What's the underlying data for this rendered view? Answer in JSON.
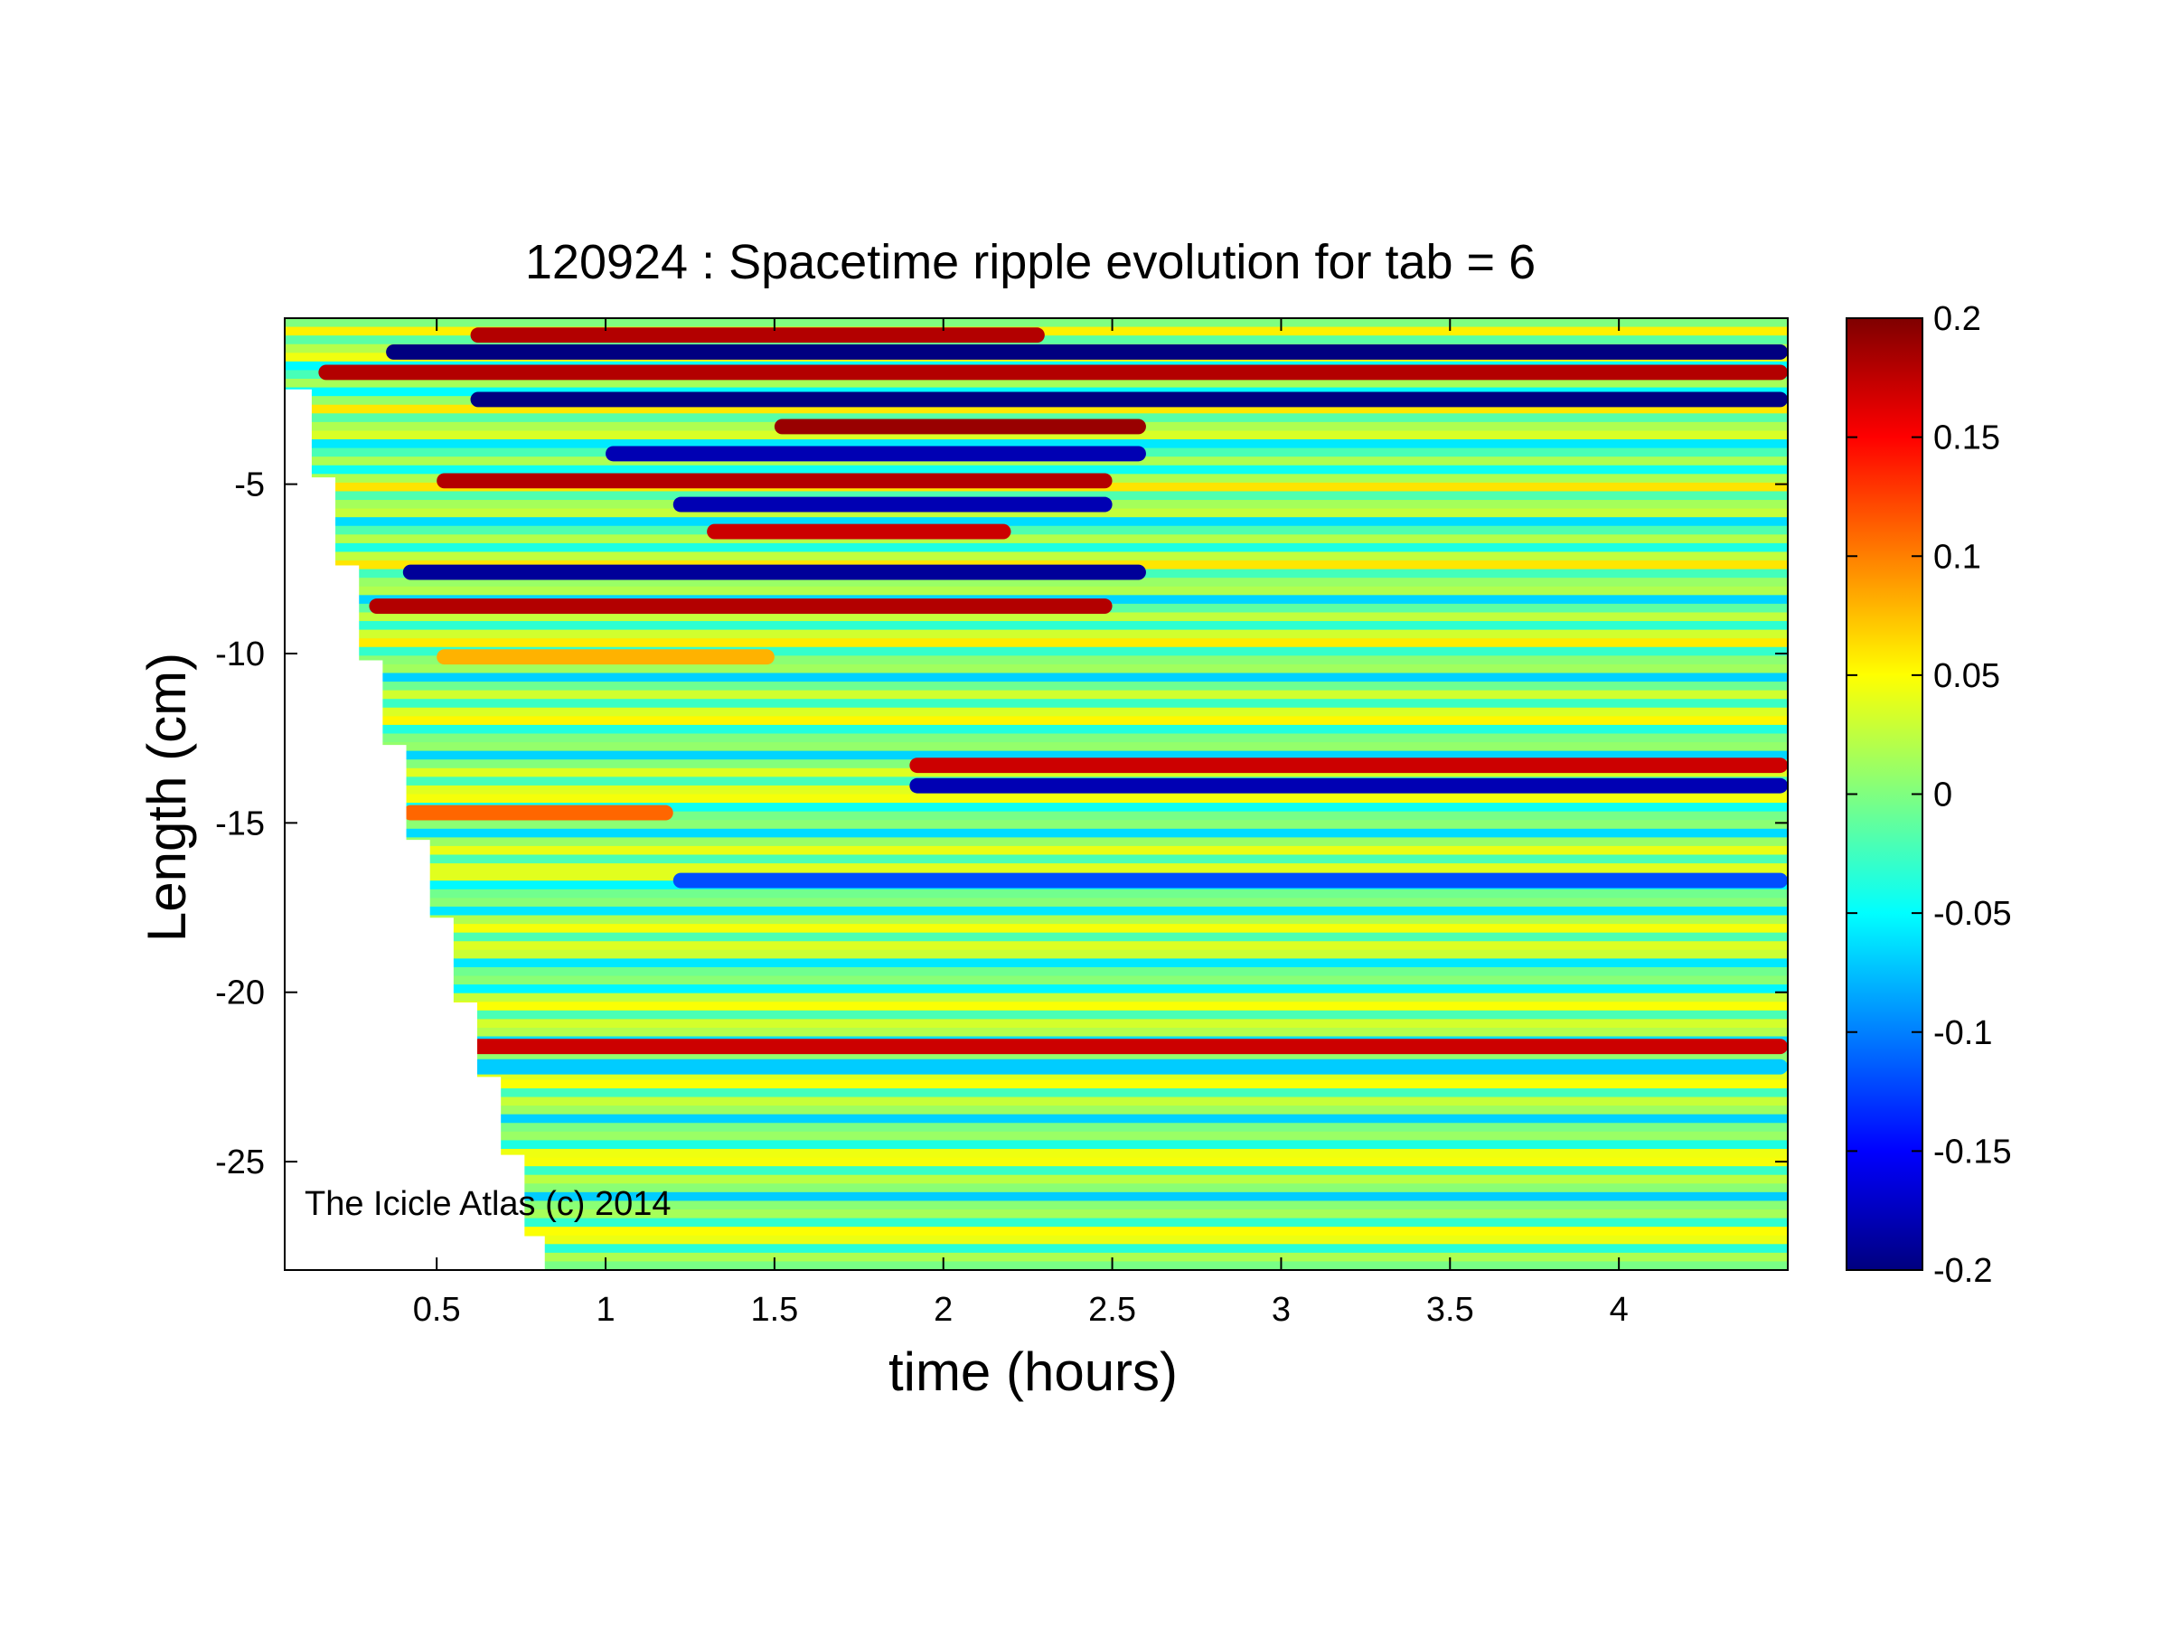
{
  "chart_data": {
    "type": "heatmap",
    "title": "120924 : Spacetime ripple evolution for tab = 6",
    "xlabel": "time (hours)",
    "ylabel": "Length (cm)",
    "xlim": [
      0.05,
      4.5
    ],
    "ylim": [
      -28.2,
      -0.1
    ],
    "xticks": [
      0.5,
      1,
      1.5,
      2,
      2.5,
      3,
      3.5,
      4
    ],
    "xtick_labels": [
      "0.5",
      "1",
      "1.5",
      "2",
      "2.5",
      "3",
      "3.5",
      "4"
    ],
    "yticks": [
      -5,
      -10,
      -15,
      -20,
      -25
    ],
    "ytick_labels": [
      "-5",
      "-10",
      "-15",
      "-20",
      "-25"
    ],
    "colorbar": {
      "colormap": "jet",
      "clim": [
        -0.2,
        0.2
      ],
      "ticks": [
        0.2,
        0.15,
        0.1,
        0.05,
        0,
        -0.05,
        -0.1,
        -0.15,
        -0.2
      ],
      "tick_labels": [
        "0.2",
        "0.15",
        "0.1",
        "0.05",
        "0",
        "-0.05",
        "-0.1",
        "-0.15",
        "-0.2"
      ]
    },
    "annotation": "The Icicle Atlas (c) 2014",
    "grid": false,
    "icicle_tip_boundary": [
      {
        "t": 0.05,
        "length": -2.2
      },
      {
        "t": 0.13,
        "length": -4.8
      },
      {
        "t": 0.2,
        "length": -7.4
      },
      {
        "t": 0.27,
        "length": -10.2
      },
      {
        "t": 0.34,
        "length": -12.7
      },
      {
        "t": 0.41,
        "length": -15.5
      },
      {
        "t": 0.48,
        "length": -17.8
      },
      {
        "t": 0.55,
        "length": -20.3
      },
      {
        "t": 0.62,
        "length": -22.5
      },
      {
        "t": 0.69,
        "length": -24.8
      },
      {
        "t": 0.76,
        "length": -27.2
      },
      {
        "t": 0.82,
        "length": -28.2
      }
    ],
    "features": [
      {
        "length": -0.6,
        "t_start": 0.6,
        "t_end": 2.3,
        "value": 0.18
      },
      {
        "length": -1.1,
        "t_start": 0.35,
        "t_end": 4.5,
        "value": -0.2
      },
      {
        "length": -1.7,
        "t_start": 0.15,
        "t_end": 4.5,
        "value": 0.18
      },
      {
        "length": -2.5,
        "t_start": 0.6,
        "t_end": 4.5,
        "value": -0.2
      },
      {
        "length": -3.3,
        "t_start": 1.5,
        "t_end": 2.6,
        "value": 0.19
      },
      {
        "length": -4.1,
        "t_start": 1.0,
        "t_end": 2.6,
        "value": -0.18
      },
      {
        "length": -4.9,
        "t_start": 0.5,
        "t_end": 2.5,
        "value": 0.18
      },
      {
        "length": -5.6,
        "t_start": 1.2,
        "t_end": 2.5,
        "value": -0.18
      },
      {
        "length": -6.4,
        "t_start": 1.3,
        "t_end": 2.2,
        "value": 0.17
      },
      {
        "length": -7.6,
        "t_start": 0.4,
        "t_end": 2.6,
        "value": -0.19
      },
      {
        "length": -8.6,
        "t_start": 0.3,
        "t_end": 2.5,
        "value": 0.18
      },
      {
        "length": -10.1,
        "t_start": 0.5,
        "t_end": 1.5,
        "value": 0.08
      },
      {
        "length": -13.3,
        "t_start": 1.9,
        "t_end": 4.5,
        "value": 0.17
      },
      {
        "length": -13.9,
        "t_start": 1.9,
        "t_end": 4.5,
        "value": -0.18
      },
      {
        "length": -14.7,
        "t_start": 0.4,
        "t_end": 1.2,
        "value": 0.11
      },
      {
        "length": -16.7,
        "t_start": 1.2,
        "t_end": 4.5,
        "value": -0.12
      },
      {
        "length": -21.6,
        "t_start": 0.6,
        "t_end": 4.5,
        "value": 0.17
      },
      {
        "length": -22.2,
        "t_start": 0.6,
        "t_end": 4.5,
        "value": -0.07
      }
    ]
  }
}
